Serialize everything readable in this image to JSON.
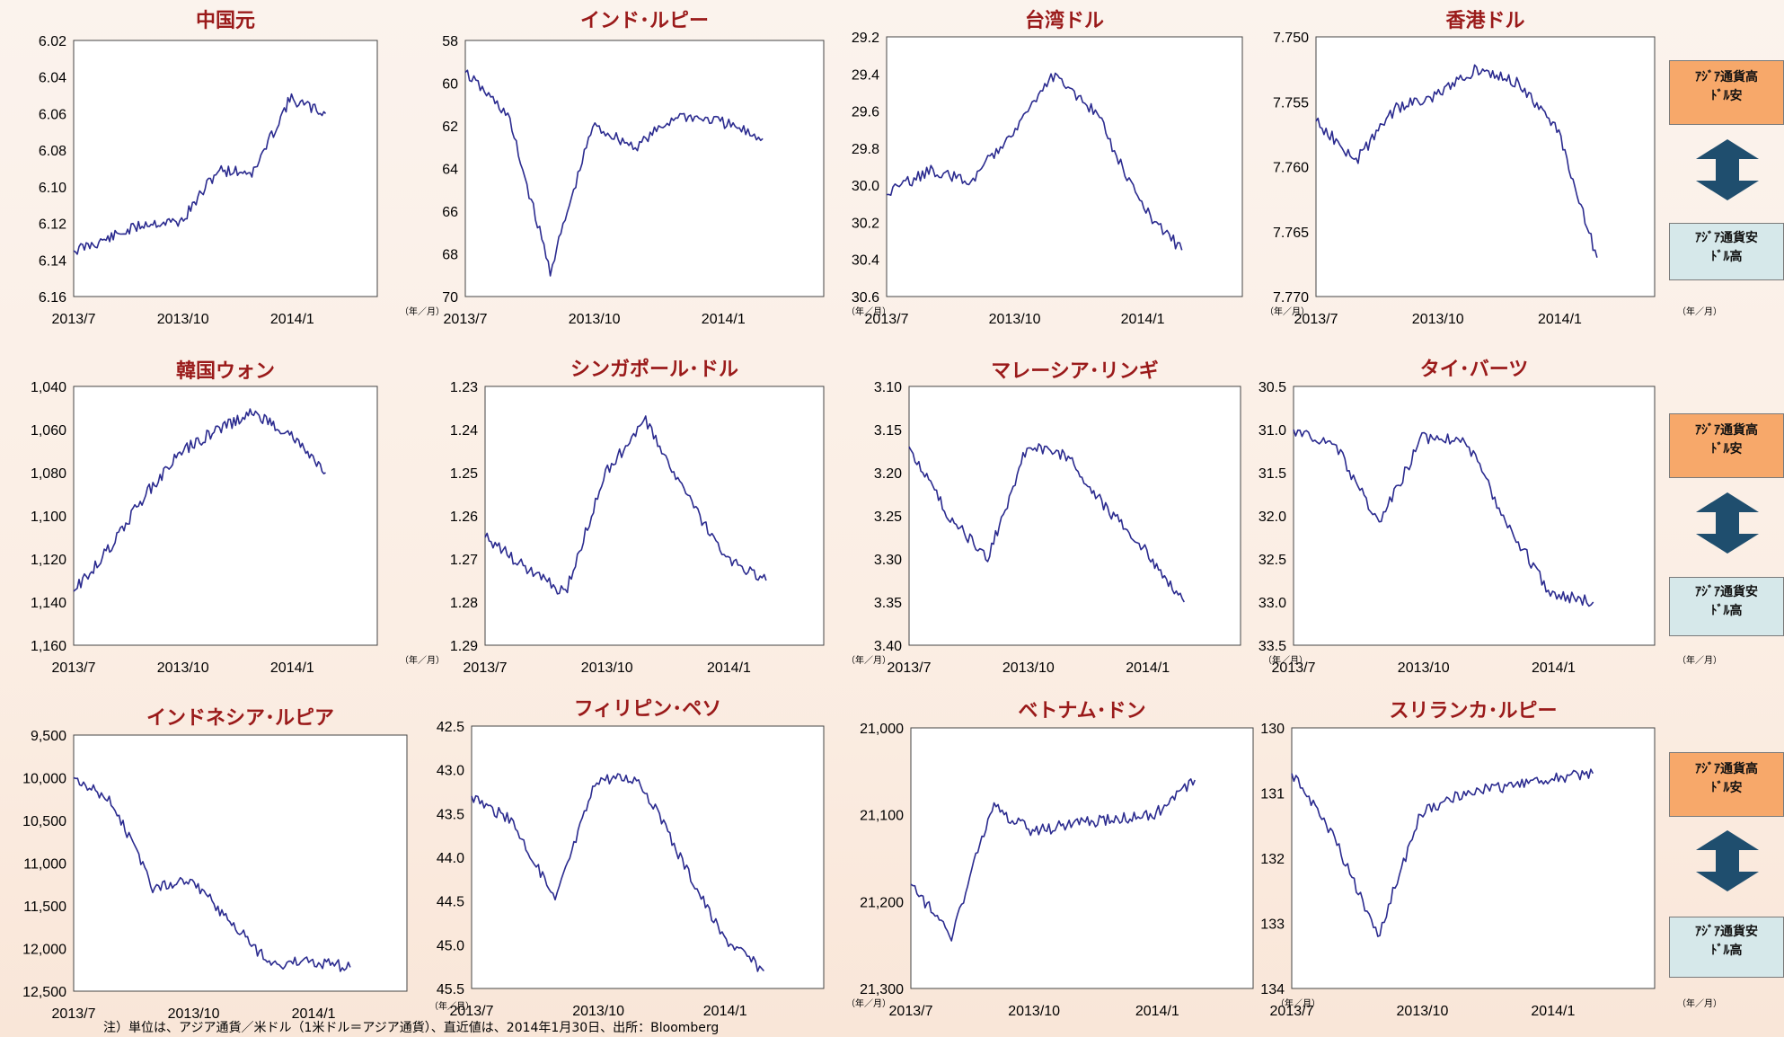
{
  "note": "注）単位は、アジア通貨／米ドル（1米ドル＝アジア通貨）、直近値は、2014年1月30日、出所：Bloomberg",
  "legend": {
    "up": [
      "ｱｼﾞｱ通貨高",
      "ﾄﾞﾙ安"
    ],
    "down": [
      "ｱｼﾞｱ通貨安",
      "ﾄﾞﾙ高"
    ]
  },
  "colors": {
    "line": "#2b2b8f",
    "title": "#9a1a1a",
    "up_box": "#f7a86a",
    "down_box": "#d6e8ea",
    "arrow": "#1f4e6e"
  },
  "chart_data": [
    {
      "type": "line",
      "title": "中国元",
      "unit_label": "（年／月）",
      "inverted": true,
      "ylim": [
        6.02,
        6.16
      ],
      "yticks": [
        "6.02",
        "6.04",
        "6.06",
        "6.08",
        "6.10",
        "6.12",
        "6.14",
        "6.16"
      ],
      "xticks": [
        "2013/7",
        "2013/10",
        "2014/1"
      ],
      "x": [
        "2013/7",
        "2013/8",
        "2013/9",
        "2013/10",
        "2013/11",
        "2013/12",
        "2014/1",
        "2014/1/30"
      ],
      "values": [
        6.135,
        6.128,
        6.12,
        6.119,
        6.091,
        6.092,
        6.052,
        6.06
      ]
    },
    {
      "type": "line",
      "title": "インド･ルピー",
      "unit_label": "（年／月）",
      "inverted": true,
      "ylim": [
        58,
        70
      ],
      "yticks": [
        "58",
        "60",
        "62",
        "64",
        "66",
        "68",
        "70"
      ],
      "xticks": [
        "2013/7",
        "2013/10",
        "2014/1"
      ],
      "x": [
        "2013/7",
        "2013/8",
        "2013/9",
        "2013/10",
        "2013/11",
        "2013/12",
        "2014/1",
        "2014/1/30"
      ],
      "values": [
        59.5,
        61.5,
        68.8,
        62.0,
        63.0,
        61.5,
        61.8,
        62.6
      ]
    },
    {
      "type": "line",
      "title": "台湾ドル",
      "unit_label": "（年／月）",
      "inverted": true,
      "ylim": [
        29.2,
        30.6
      ],
      "yticks": [
        "29.2",
        "29.4",
        "29.6",
        "29.8",
        "30.0",
        "30.2",
        "30.4",
        "30.6"
      ],
      "xticks": [
        "2013/7",
        "2013/10",
        "2014/1"
      ],
      "x": [
        "2013/7",
        "2013/8",
        "2013/9",
        "2013/10",
        "2013/11",
        "2013/12",
        "2014/1",
        "2014/1/30"
      ],
      "values": [
        30.05,
        29.92,
        29.98,
        29.7,
        29.4,
        29.62,
        30.1,
        30.35
      ]
    },
    {
      "type": "line",
      "title": "香港ドル",
      "unit_label": "（年／月）",
      "inverted": true,
      "ylim": [
        7.75,
        7.77
      ],
      "yticks": [
        "7.750",
        "7.755",
        "7.760",
        "7.765",
        "7.770"
      ],
      "xticks": [
        "2013/7",
        "2013/10",
        "2014/1"
      ],
      "x": [
        "2013/7",
        "2013/8",
        "2013/9",
        "2013/10",
        "2013/11",
        "2013/12",
        "2014/1",
        "2014/1/30"
      ],
      "values": [
        7.7565,
        7.7595,
        7.7555,
        7.7545,
        7.7525,
        7.7535,
        7.757,
        7.767
      ]
    },
    {
      "type": "line",
      "title": "韓国ウォン",
      "unit_label": "（年／月）",
      "inverted": true,
      "ylim": [
        1040,
        1160
      ],
      "yticks": [
        "1,040",
        "1,060",
        "1,080",
        "1,100",
        "1,120",
        "1,140",
        "1,160"
      ],
      "xticks": [
        "2013/7",
        "2013/10",
        "2014/1"
      ],
      "x": [
        "2013/7",
        "2013/8",
        "2013/9",
        "2013/10",
        "2013/11",
        "2013/12",
        "2014/1",
        "2014/1/30"
      ],
      "values": [
        1135,
        1115,
        1090,
        1070,
        1060,
        1052,
        1062,
        1080
      ]
    },
    {
      "type": "line",
      "title": "シンガポール･ドル",
      "unit_label": "（年／月）",
      "inverted": true,
      "ylim": [
        1.23,
        1.29
      ],
      "yticks": [
        "1.23",
        "1.24",
        "1.25",
        "1.26",
        "1.27",
        "1.28",
        "1.29"
      ],
      "xticks": [
        "2013/7",
        "2013/10",
        "2014/1"
      ],
      "x": [
        "2013/7",
        "2013/8",
        "2013/9",
        "2013/10",
        "2013/11",
        "2013/12",
        "2014/1",
        "2014/1/30"
      ],
      "values": [
        1.265,
        1.272,
        1.278,
        1.25,
        1.238,
        1.255,
        1.27,
        1.275
      ]
    },
    {
      "type": "line",
      "title": "マレーシア･リンギ",
      "unit_label": "（年／月）",
      "inverted": true,
      "ylim": [
        3.1,
        3.4
      ],
      "yticks": [
        "3.10",
        "3.15",
        "3.20",
        "3.25",
        "3.30",
        "3.35",
        "3.40"
      ],
      "xticks": [
        "2013/7",
        "2013/10",
        "2014/1"
      ],
      "x": [
        "2013/7",
        "2013/8",
        "2013/9",
        "2013/10",
        "2013/11",
        "2013/12",
        "2014/1",
        "2014/1/30"
      ],
      "values": [
        3.17,
        3.25,
        3.3,
        3.17,
        3.18,
        3.24,
        3.29,
        3.35
      ]
    },
    {
      "type": "line",
      "title": "タイ･バーツ",
      "unit_label": "（年／月）",
      "inverted": true,
      "ylim": [
        30.5,
        33.5
      ],
      "yticks": [
        "30.5",
        "31.0",
        "31.5",
        "32.0",
        "32.5",
        "33.0",
        "33.5"
      ],
      "xticks": [
        "2013/7",
        "2013/10",
        "2014/1"
      ],
      "x": [
        "2013/7",
        "2013/8",
        "2013/9",
        "2013/10",
        "2013/11",
        "2013/12",
        "2014/1",
        "2014/1/30"
      ],
      "values": [
        31.0,
        31.2,
        32.1,
        31.1,
        31.1,
        32.1,
        32.9,
        33.0
      ]
    },
    {
      "type": "line",
      "title": "インドネシア･ルピア",
      "unit_label": "（年／月）",
      "inverted": true,
      "ylim": [
        9500,
        12500
      ],
      "yticks": [
        "9,500",
        "10,000",
        "10,500",
        "11,000",
        "11,500",
        "12,000",
        "12,500"
      ],
      "xticks": [
        "2013/7",
        "2013/10",
        "2014/1"
      ],
      "x": [
        "2013/7",
        "2013/8",
        "2013/9",
        "2013/10",
        "2013/11",
        "2013/12",
        "2014/1",
        "2014/1/30"
      ],
      "values": [
        10000,
        10300,
        11300,
        11200,
        11700,
        12200,
        12150,
        12220
      ]
    },
    {
      "type": "line",
      "title": "フィリピン･ペソ",
      "unit_label": "（年／月）",
      "inverted": true,
      "ylim": [
        42.5,
        45.5
      ],
      "yticks": [
        "42.5",
        "43.0",
        "43.5",
        "44.0",
        "44.5",
        "45.0",
        "45.5"
      ],
      "xticks": [
        "2013/7",
        "2013/10",
        "2014/1"
      ],
      "x": [
        "2013/7",
        "2013/8",
        "2013/9",
        "2013/10",
        "2013/11",
        "2013/12",
        "2014/1",
        "2014/1/30"
      ],
      "values": [
        43.3,
        43.6,
        44.5,
        43.1,
        43.1,
        44.0,
        44.9,
        45.3
      ]
    },
    {
      "type": "line",
      "title": "ベトナム･ドン",
      "unit_label": "（年／月）",
      "inverted": true,
      "ylim": [
        21000,
        21300
      ],
      "yticks": [
        "21,000",
        "21,100",
        "21,200",
        "21,300"
      ],
      "xticks": [
        "2013/7",
        "2013/10",
        "2014/1"
      ],
      "x": [
        "2013/7",
        "2013/8",
        "2013/9",
        "2013/10",
        "2013/11",
        "2013/12",
        "2014/1",
        "2014/1/30"
      ],
      "values": [
        21180,
        21240,
        21090,
        21120,
        21110,
        21105,
        21100,
        21060
      ]
    },
    {
      "type": "line",
      "title": "スリランカ･ルピー",
      "unit_label": "（年／月）",
      "inverted": true,
      "ylim": [
        130,
        134
      ],
      "yticks": [
        "130",
        "131",
        "132",
        "133",
        "134"
      ],
      "xticks": [
        "2013/7",
        "2013/10",
        "2014/1"
      ],
      "x": [
        "2013/7",
        "2013/8",
        "2013/9",
        "2013/10",
        "2013/11",
        "2013/12",
        "2014/1",
        "2014/1/30"
      ],
      "values": [
        130.7,
        131.7,
        133.2,
        131.3,
        131.0,
        130.9,
        130.8,
        130.7
      ]
    }
  ]
}
